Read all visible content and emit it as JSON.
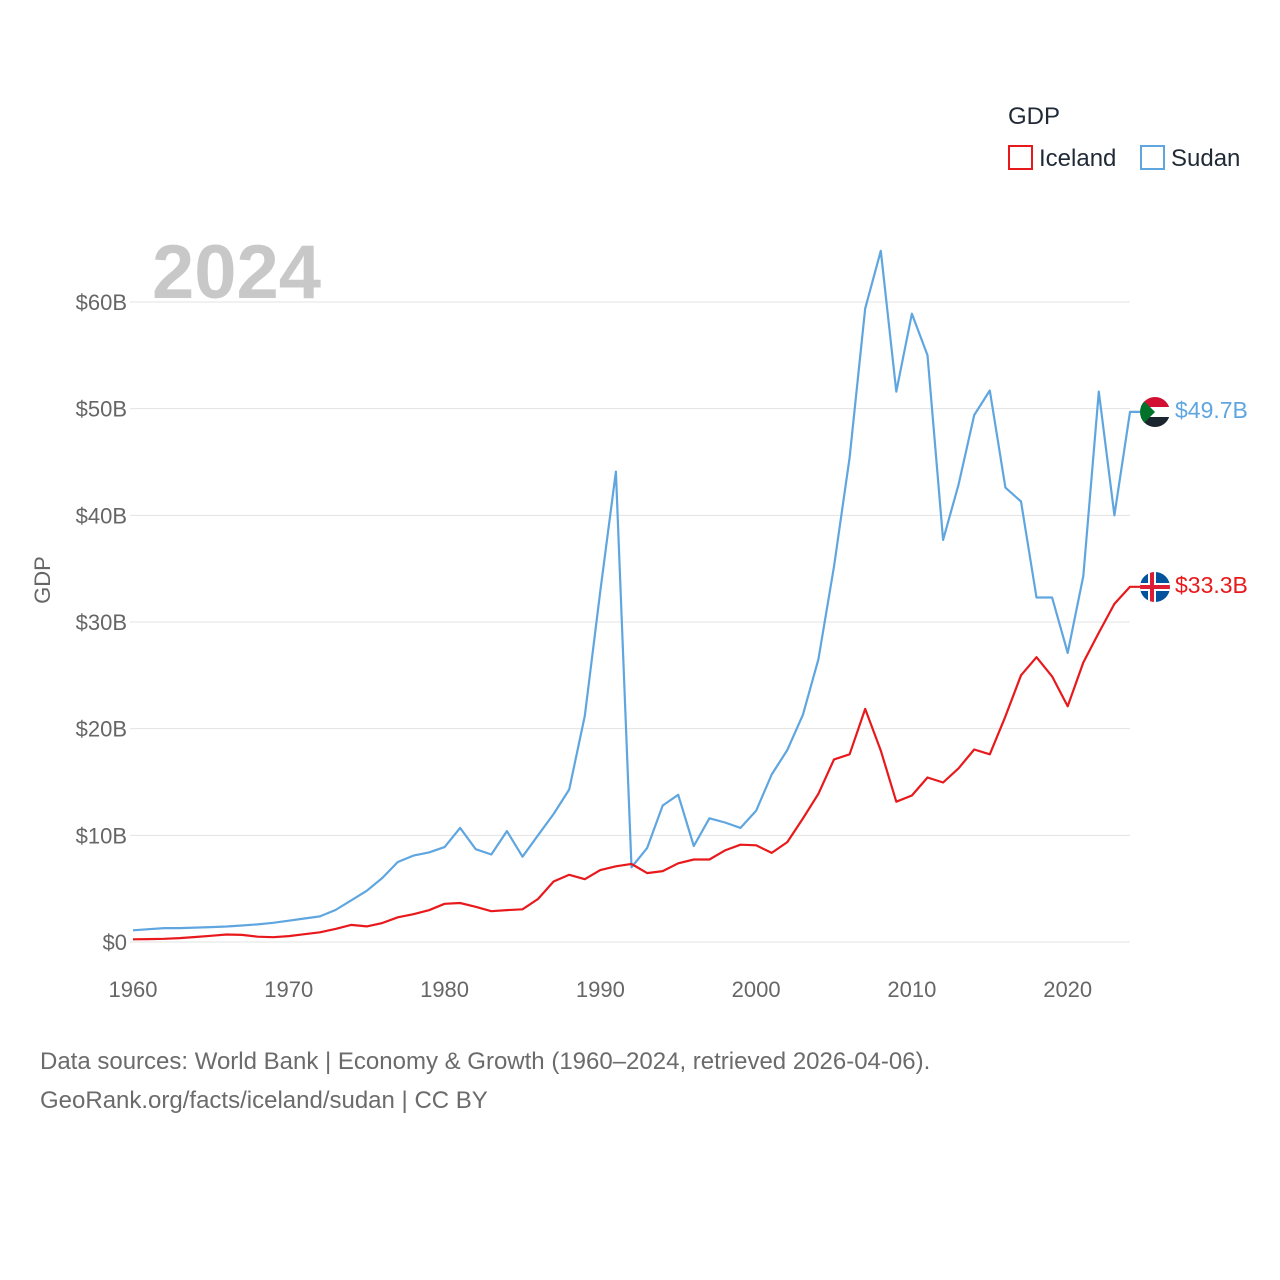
{
  "chart_data": {
    "type": "line",
    "current_year_label": "2024",
    "ylabel": "GDP",
    "ylim": [
      0,
      65000000000
    ],
    "xlim": [
      1960,
      2024
    ],
    "yticks": [
      {
        "value": 0,
        "label": "$0"
      },
      {
        "value": 10000000000,
        "label": "$10B"
      },
      {
        "value": 20000000000,
        "label": "$20B"
      },
      {
        "value": 30000000000,
        "label": "$30B"
      },
      {
        "value": 40000000000,
        "label": "$40B"
      },
      {
        "value": 50000000000,
        "label": "$50B"
      },
      {
        "value": 60000000000,
        "label": "$60B"
      }
    ],
    "xticks": [
      {
        "value": 1960,
        "label": "1960"
      },
      {
        "value": 1970,
        "label": "1970"
      },
      {
        "value": 1980,
        "label": "1980"
      },
      {
        "value": 1990,
        "label": "1990"
      },
      {
        "value": 2000,
        "label": "2000"
      },
      {
        "value": 2010,
        "label": "2010"
      },
      {
        "value": 2020,
        "label": "2020"
      }
    ],
    "legend": {
      "title": "GDP",
      "position": "top-right"
    },
    "x": [
      1960,
      1961,
      1962,
      1963,
      1964,
      1965,
      1966,
      1967,
      1968,
      1969,
      1970,
      1971,
      1972,
      1973,
      1974,
      1975,
      1976,
      1977,
      1978,
      1979,
      1980,
      1981,
      1982,
      1983,
      1984,
      1985,
      1986,
      1987,
      1988,
      1989,
      1990,
      1991,
      1992,
      1993,
      1994,
      1995,
      1996,
      1997,
      1998,
      1999,
      2000,
      2001,
      2002,
      2003,
      2004,
      2005,
      2006,
      2007,
      2008,
      2009,
      2010,
      2011,
      2012,
      2013,
      2014,
      2015,
      2016,
      2017,
      2018,
      2019,
      2020,
      2021,
      2022,
      2023,
      2024
    ],
    "series": [
      {
        "name": "Iceland",
        "color": "#e8191c",
        "end_label": "$33.3B",
        "flag_icon": "iceland-flag-icon",
        "values": [
          0.25,
          0.27,
          0.3,
          0.37,
          0.47,
          0.58,
          0.7,
          0.67,
          0.5,
          0.45,
          0.55,
          0.73,
          0.91,
          1.23,
          1.6,
          1.46,
          1.78,
          2.32,
          2.61,
          2.98,
          3.58,
          3.66,
          3.3,
          2.89,
          2.99,
          3.07,
          4.03,
          5.67,
          6.3,
          5.89,
          6.74,
          7.1,
          7.32,
          6.46,
          6.65,
          7.38,
          7.73,
          7.73,
          8.59,
          9.12,
          9.07,
          8.35,
          9.37,
          11.58,
          13.89,
          17.12,
          17.6,
          21.85,
          17.94,
          13.15,
          13.73,
          15.42,
          14.95,
          16.28,
          18.05,
          17.6,
          21.15,
          25.0,
          26.7,
          24.9,
          22.1,
          26.2,
          29.0,
          31.7,
          33.3
        ]
      },
      {
        "name": "Sudan",
        "color": "#5fa6e0",
        "end_label": "$49.7B",
        "flag_icon": "sudan-flag-icon",
        "values": [
          1.1,
          1.2,
          1.3,
          1.3,
          1.35,
          1.4,
          1.45,
          1.55,
          1.65,
          1.8,
          2.0,
          2.2,
          2.4,
          3.0,
          3.9,
          4.8,
          6.0,
          7.5,
          8.1,
          8.4,
          8.9,
          10.7,
          8.7,
          8.2,
          10.4,
          8.0,
          10.0,
          12.0,
          14.3,
          21.2,
          32.9,
          44.1,
          7.0,
          8.8,
          12.8,
          13.8,
          9.0,
          11.6,
          11.2,
          10.7,
          12.3,
          15.7,
          18.0,
          21.3,
          26.5,
          35.2,
          45.4,
          59.4,
          64.8,
          51.6,
          58.9,
          55.0,
          37.7,
          42.9,
          49.4,
          51.7,
          42.6,
          41.3,
          32.3,
          32.3,
          27.1,
          34.3,
          51.6,
          40.0,
          49.7
        ]
      }
    ]
  },
  "footer": {
    "line1": "Data sources: World Bank | Economy & Growth (1960–2024, retrieved 2026-04-06).",
    "line2": "GeoRank.org/facts/iceland/sudan | CC BY"
  }
}
